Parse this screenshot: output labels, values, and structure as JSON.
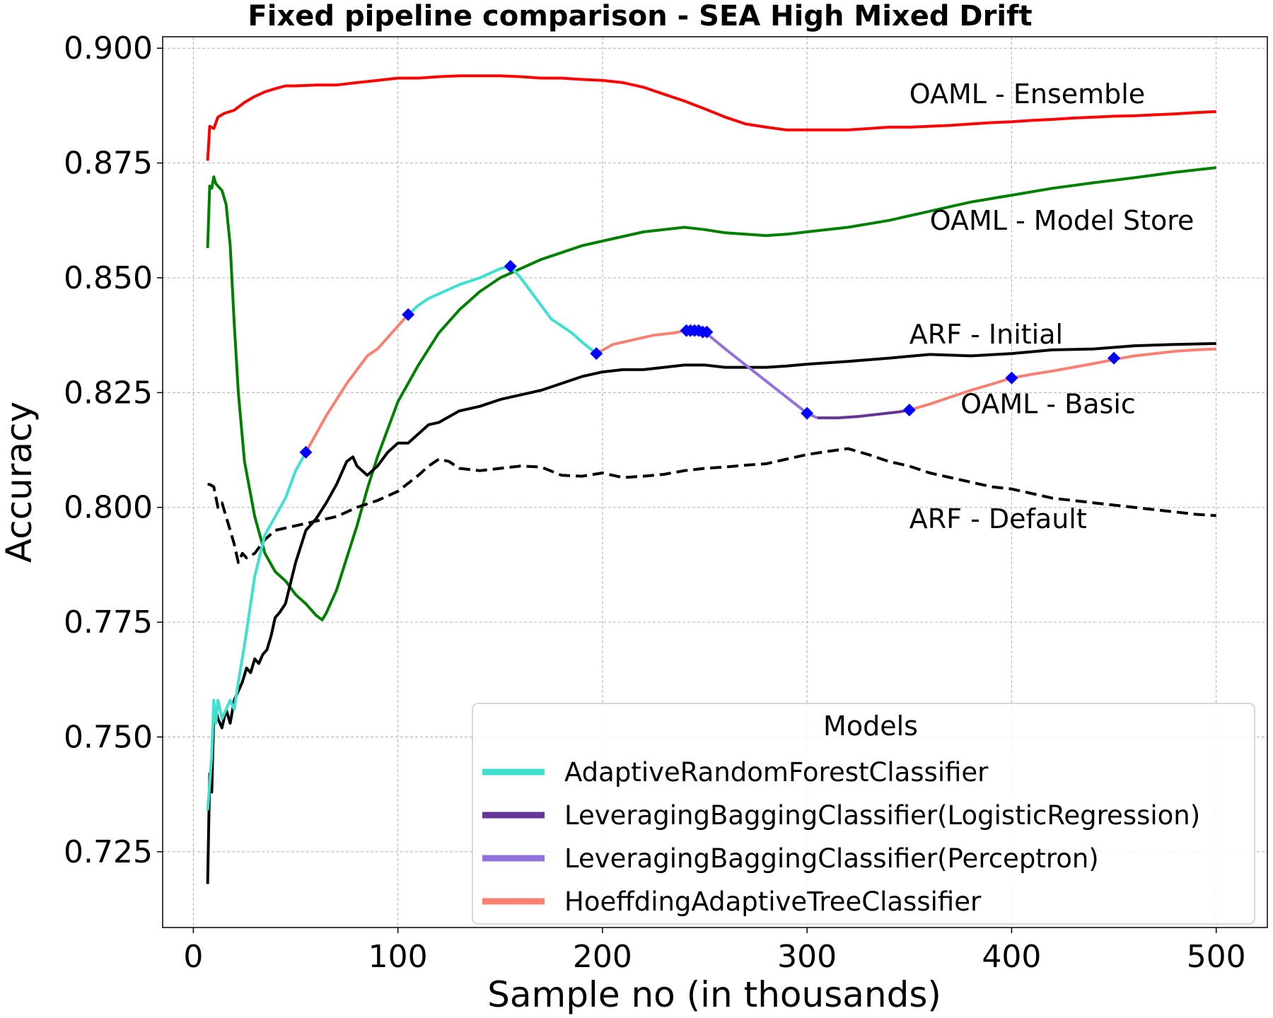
{
  "chart_data": {
    "type": "line",
    "title": "Fixed pipeline comparison - SEA High Mixed Drift",
    "xlabel": "Sample no (in thousands)",
    "ylabel": "Accuracy",
    "xlim": [
      -15,
      525
    ],
    "ylim": [
      0.7085,
      0.9025
    ],
    "x_ticks": [
      0,
      100,
      200,
      300,
      400,
      500
    ],
    "y_ticks": [
      0.725,
      0.75,
      0.775,
      0.8,
      0.825,
      0.85,
      0.875,
      0.9
    ],
    "x_tick_labels": [
      "0",
      "100",
      "200",
      "300",
      "400",
      "500"
    ],
    "y_tick_labels": [
      "0.725",
      "0.750",
      "0.775",
      "0.800",
      "0.825",
      "0.850",
      "0.875",
      "0.900"
    ],
    "grid": true,
    "colors": {
      "ensemble": "#ff0000",
      "model_store": "#008000",
      "arf_initial": "#000000",
      "arf_default": "#000000",
      "arf_classifier": "#40e0d0",
      "lb_logistic": "#663399",
      "lb_perceptron": "#9370db",
      "hoeffding": "#fa8072",
      "switch_marker": "#0000ff"
    },
    "series": [
      {
        "name": "OAML - Ensemble",
        "color": "#ff0000",
        "x": [
          7,
          8,
          10,
          12,
          15,
          20,
          25,
          30,
          35,
          40,
          45,
          50,
          60,
          70,
          80,
          90,
          100,
          110,
          120,
          130,
          140,
          150,
          160,
          170,
          180,
          190,
          200,
          210,
          220,
          230,
          240,
          250,
          260,
          270,
          280,
          290,
          300,
          310,
          320,
          330,
          340,
          350,
          360,
          370,
          380,
          390,
          400,
          410,
          420,
          430,
          440,
          450,
          460,
          470,
          480,
          490,
          500
        ],
        "y": [
          0.8755,
          0.883,
          0.8825,
          0.885,
          0.8858,
          0.8865,
          0.8882,
          0.8895,
          0.8905,
          0.8912,
          0.8918,
          0.8918,
          0.892,
          0.892,
          0.8925,
          0.893,
          0.8935,
          0.8935,
          0.8938,
          0.894,
          0.894,
          0.894,
          0.8938,
          0.8935,
          0.8935,
          0.8932,
          0.893,
          0.8925,
          0.8915,
          0.89,
          0.8885,
          0.8868,
          0.885,
          0.8835,
          0.8828,
          0.8822,
          0.8822,
          0.8822,
          0.8822,
          0.8825,
          0.8828,
          0.8828,
          0.883,
          0.8832,
          0.8835,
          0.8838,
          0.884,
          0.8843,
          0.8845,
          0.8848,
          0.885,
          0.8852,
          0.8853,
          0.8855,
          0.8857,
          0.886,
          0.8862
        ]
      },
      {
        "name": "OAML - Model Store",
        "color": "#008000",
        "x": [
          7,
          8,
          9,
          10,
          11,
          12,
          14,
          16,
          18,
          20,
          22,
          25,
          30,
          35,
          40,
          45,
          50,
          55,
          60,
          63,
          65,
          70,
          75,
          80,
          85,
          90,
          100,
          110,
          120,
          130,
          140,
          150,
          160,
          170,
          180,
          190,
          200,
          210,
          220,
          230,
          240,
          250,
          260,
          270,
          280,
          290,
          300,
          320,
          340,
          360,
          380,
          400,
          420,
          440,
          460,
          480,
          500
        ],
        "y": [
          0.8565,
          0.87,
          0.8695,
          0.872,
          0.8705,
          0.87,
          0.869,
          0.866,
          0.857,
          0.84,
          0.825,
          0.81,
          0.798,
          0.79,
          0.786,
          0.784,
          0.781,
          0.779,
          0.7765,
          0.7755,
          0.777,
          0.782,
          0.789,
          0.796,
          0.804,
          0.811,
          0.823,
          0.831,
          0.838,
          0.843,
          0.847,
          0.85,
          0.852,
          0.854,
          0.8555,
          0.857,
          0.858,
          0.859,
          0.86,
          0.8605,
          0.861,
          0.8605,
          0.8598,
          0.8595,
          0.8592,
          0.8595,
          0.86,
          0.861,
          0.8625,
          0.8645,
          0.8665,
          0.868,
          0.8695,
          0.8707,
          0.8718,
          0.873,
          0.874
        ]
      },
      {
        "name": "ARF - Initial",
        "color": "#000000",
        "x": [
          7,
          8,
          9,
          10,
          11,
          12,
          14,
          16,
          18,
          20,
          22,
          24,
          26,
          28,
          30,
          32,
          34,
          36,
          38,
          40,
          42,
          45,
          50,
          55,
          60,
          65,
          70,
          75,
          78,
          80,
          85,
          90,
          95,
          100,
          105,
          110,
          115,
          120,
          130,
          140,
          150,
          160,
          170,
          180,
          190,
          200,
          210,
          220,
          230,
          240,
          250,
          260,
          270,
          280,
          290,
          300,
          320,
          340,
          360,
          380,
          400,
          420,
          440,
          460,
          480,
          500
        ],
        "y": [
          0.718,
          0.742,
          0.738,
          0.755,
          0.756,
          0.754,
          0.752,
          0.756,
          0.753,
          0.758,
          0.76,
          0.762,
          0.765,
          0.764,
          0.767,
          0.766,
          0.768,
          0.769,
          0.772,
          0.776,
          0.777,
          0.779,
          0.788,
          0.795,
          0.7975,
          0.801,
          0.805,
          0.81,
          0.811,
          0.809,
          0.807,
          0.809,
          0.812,
          0.814,
          0.814,
          0.816,
          0.818,
          0.8185,
          0.821,
          0.822,
          0.8235,
          0.8245,
          0.8255,
          0.827,
          0.8285,
          0.8295,
          0.83,
          0.83,
          0.8305,
          0.831,
          0.831,
          0.8305,
          0.8305,
          0.8305,
          0.8308,
          0.8312,
          0.8318,
          0.8325,
          0.8333,
          0.833,
          0.8335,
          0.8343,
          0.8345,
          0.8352,
          0.8355,
          0.8357
        ]
      },
      {
        "name": "ARF - Default",
        "color": "#000000",
        "dashed": true,
        "x": [
          7,
          8,
          10,
          12,
          14,
          16,
          18,
          20,
          22,
          24,
          26,
          28,
          30,
          35,
          40,
          45,
          50,
          60,
          70,
          80,
          90,
          100,
          110,
          115,
          120,
          125,
          130,
          140,
          150,
          160,
          170,
          180,
          190,
          200,
          210,
          220,
          230,
          240,
          250,
          260,
          270,
          280,
          290,
          300,
          310,
          320,
          330,
          340,
          350,
          360,
          370,
          380,
          390,
          400,
          410,
          420,
          430,
          440,
          450,
          460,
          470,
          480,
          490,
          500
        ],
        "y": [
          0.805,
          0.805,
          0.8045,
          0.8,
          0.801,
          0.798,
          0.795,
          0.792,
          0.788,
          0.79,
          0.789,
          0.7895,
          0.79,
          0.793,
          0.795,
          0.7955,
          0.796,
          0.797,
          0.798,
          0.8,
          0.8015,
          0.8035,
          0.807,
          0.809,
          0.8105,
          0.81,
          0.8085,
          0.808,
          0.8085,
          0.809,
          0.8088,
          0.807,
          0.8068,
          0.8075,
          0.8065,
          0.8068,
          0.8072,
          0.808,
          0.8085,
          0.8088,
          0.8092,
          0.8095,
          0.8105,
          0.8115,
          0.8122,
          0.8128,
          0.8115,
          0.81,
          0.809,
          0.8075,
          0.8065,
          0.8055,
          0.8045,
          0.804,
          0.803,
          0.802,
          0.8015,
          0.801,
          0.8005,
          0.8,
          0.7995,
          0.799,
          0.7985,
          0.7982
        ]
      }
    ],
    "segments": [
      {
        "model": "AdaptiveRandomForestClassifier",
        "color": "#40e0d0",
        "x": [
          7,
          8,
          9,
          10,
          11,
          12,
          14,
          16,
          18,
          20,
          22,
          25,
          30,
          35,
          40,
          45,
          50,
          55
        ],
        "y": [
          0.734,
          0.74,
          0.746,
          0.758,
          0.753,
          0.758,
          0.754,
          0.756,
          0.758,
          0.756,
          0.762,
          0.77,
          0.785,
          0.794,
          0.798,
          0.802,
          0.808,
          0.812
        ]
      },
      {
        "model": "HoeffdingAdaptiveTreeClassifier",
        "color": "#fa8072",
        "x": [
          55,
          60,
          65,
          70,
          75,
          80,
          85,
          90,
          95,
          100,
          105
        ],
        "y": [
          0.812,
          0.816,
          0.82,
          0.8235,
          0.827,
          0.83,
          0.833,
          0.8345,
          0.837,
          0.8395,
          0.842
        ]
      },
      {
        "model": "AdaptiveRandomForestClassifier",
        "color": "#40e0d0",
        "x": [
          105,
          110,
          115,
          120,
          130,
          140,
          150,
          155
        ],
        "y": [
          0.842,
          0.844,
          0.8455,
          0.8465,
          0.8485,
          0.85,
          0.852,
          0.8525
        ]
      },
      {
        "model": "AdaptiveRandomForestClassifier",
        "color": "#40e0d0",
        "x": [
          155,
          160,
          165,
          170,
          175,
          180,
          185,
          190,
          197
        ],
        "y": [
          0.8525,
          0.85,
          0.847,
          0.844,
          0.841,
          0.8395,
          0.838,
          0.836,
          0.8335
        ]
      },
      {
        "model": "HoeffdingAdaptiveTreeClassifier",
        "color": "#fa8072",
        "x": [
          197,
          205,
          215,
          225,
          235,
          240
        ],
        "y": [
          0.8335,
          0.8355,
          0.8365,
          0.8375,
          0.838,
          0.8385
        ]
      },
      {
        "model": "HoeffdingAdaptiveTreeClassifier",
        "color": "#fa8072",
        "x": [
          240,
          245,
          250
        ],
        "y": [
          0.8385,
          0.8385,
          0.8382
        ]
      },
      {
        "model": "LeveragingBaggingClassifier(Perceptron)",
        "color": "#9370db",
        "x": [
          250,
          260,
          270,
          280,
          290,
          300,
          305
        ],
        "y": [
          0.8382,
          0.8345,
          0.831,
          0.8275,
          0.824,
          0.8205,
          0.8195
        ]
      },
      {
        "model": "LeveragingBaggingClassifier(LogisticRegression)",
        "color": "#663399",
        "x": [
          305,
          315,
          325,
          335,
          345,
          350
        ],
        "y": [
          0.8195,
          0.8195,
          0.8198,
          0.8203,
          0.8208,
          0.8212
        ]
      },
      {
        "model": "HoeffdingAdaptiveTreeClassifier",
        "color": "#fa8072",
        "x": [
          350,
          360,
          370,
          380,
          390,
          400,
          410,
          420,
          430,
          440,
          450,
          460,
          470,
          480,
          490,
          500
        ],
        "y": [
          0.8212,
          0.8225,
          0.824,
          0.8255,
          0.8268,
          0.8282,
          0.829,
          0.8297,
          0.8305,
          0.8313,
          0.8322,
          0.833,
          0.8335,
          0.834,
          0.8343,
          0.8345
        ]
      }
    ],
    "switch_markers": {
      "x": [
        55,
        105,
        155,
        197,
        241,
        243,
        245,
        247,
        249,
        251,
        300,
        350,
        400,
        450
      ],
      "y": [
        0.812,
        0.842,
        0.8525,
        0.8335,
        0.8385,
        0.8385,
        0.8385,
        0.8385,
        0.8382,
        0.8382,
        0.8205,
        0.8212,
        0.8282,
        0.8325
      ]
    },
    "annotations": [
      {
        "text": "OAML - Ensemble",
        "x": 350,
        "y": 0.888
      },
      {
        "text": "OAML - Model Store",
        "x": 360,
        "y": 0.8605
      },
      {
        "text": "ARF - Initial",
        "x": 350,
        "y": 0.8357
      },
      {
        "text": "OAML - Basic",
        "x": 375,
        "y": 0.8205
      },
      {
        "text": "ARF - Default",
        "x": 350,
        "y": 0.7955
      }
    ],
    "legend": {
      "title": "Models",
      "position": "lower-right",
      "items": [
        {
          "label": "AdaptiveRandomForestClassifier",
          "color": "#40e0d0"
        },
        {
          "label": "LeveragingBaggingClassifier(LogisticRegression)",
          "color": "#663399"
        },
        {
          "label": "LeveragingBaggingClassifier(Perceptron)",
          "color": "#9370db"
        },
        {
          "label": "HoeffdingAdaptiveTreeClassifier",
          "color": "#fa8072"
        }
      ]
    }
  }
}
